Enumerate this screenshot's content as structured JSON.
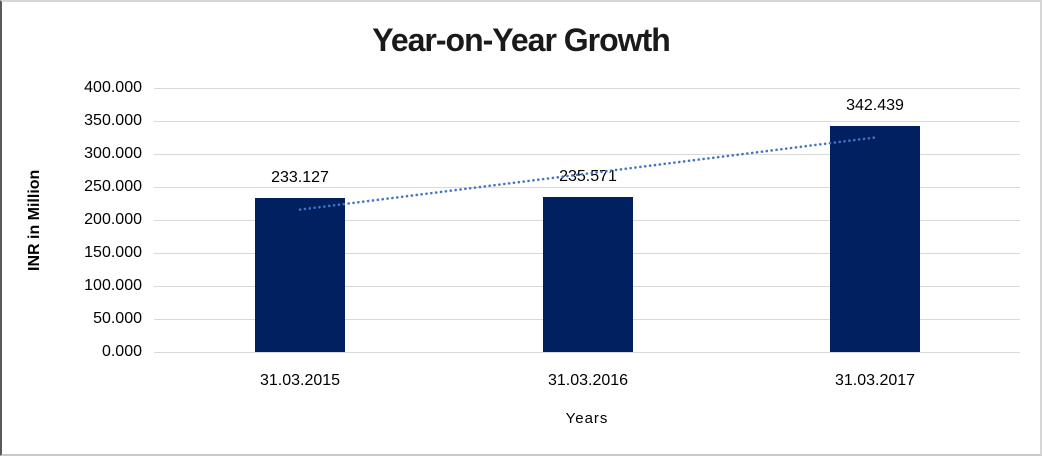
{
  "chart_data": {
    "type": "bar",
    "title": "Year-on-Year Growth",
    "categories": [
      "31.03.2015",
      "31.03.2016",
      "31.03.2017"
    ],
    "values": [
      233.127,
      235.571,
      342.439
    ],
    "data_labels": [
      "233.127",
      "235.571",
      "342.439"
    ],
    "xlabel": "Years",
    "ylabel": "INR in Million",
    "ylim": [
      0,
      400
    ],
    "ytick_step": 50,
    "ytick_labels": [
      "400.000",
      "350.000",
      "300.000",
      "250.000",
      "200.000",
      "150.000",
      "100.000",
      "50.000",
      "0.000"
    ],
    "grid": true,
    "legend_position": "none",
    "bar_color": "#002060",
    "gridline_color": "#d9d9d9",
    "trendline": {
      "type": "linear",
      "style": "dotted",
      "color": "#4472C4",
      "start_value": 215.7,
      "end_value": 325.0
    }
  }
}
